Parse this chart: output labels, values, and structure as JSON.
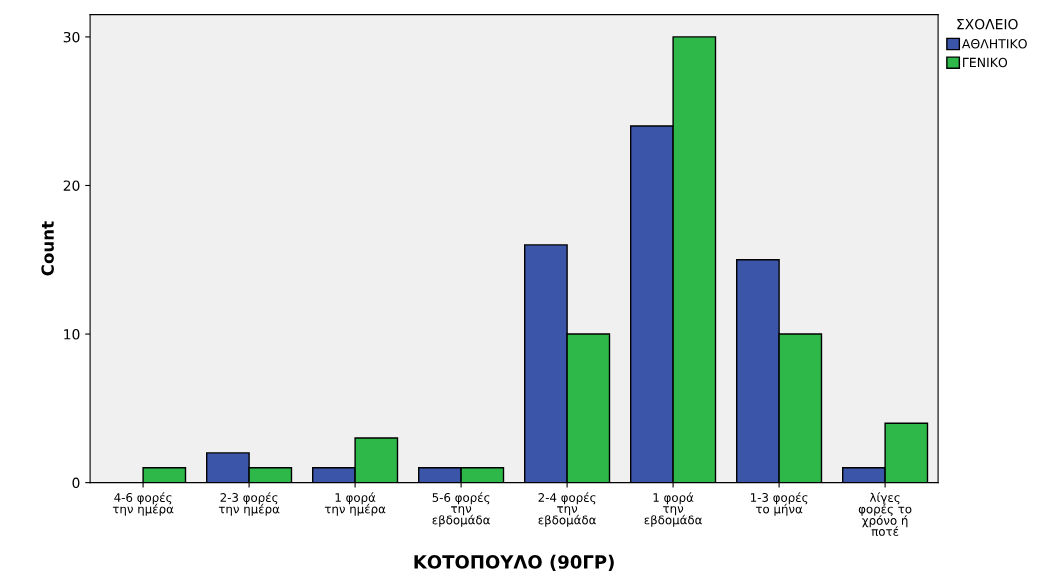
{
  "chart_data": {
    "type": "bar",
    "xlabel": "ΚΟΤΟΠΟΥΛΟ (90ΓΡ)",
    "ylabel": "Count",
    "legend_title": "ΣΧΟΛΕΙΟ",
    "legend": "top right",
    "grid": false,
    "categories": [
      "4-6 φορές\nτην ημέρα",
      "2-3 φορές\nτην ημέρα",
      "1 φορά\nτην ημέρα",
      "5-6 φορές\nτην\nεβδομάδα",
      "2-4 φορές\nτην\nεβδομάδα",
      "1 φορά\nτην\nεβδομάδα",
      "1-3 φορές\nτο μήνα",
      "λίγες\nφορές το\nχρόνο ή\nποτέ"
    ],
    "series": [
      {
        "name": "ΑΘΛΗΤΙΚΟ",
        "color": "#3b56a8",
        "values": [
          0,
          2,
          1,
          1,
          16,
          24,
          15,
          1
        ]
      },
      {
        "name": "ΓΕΝΙΚΟ",
        "color": "#2fb84a",
        "values": [
          1,
          1,
          3,
          1,
          10,
          30,
          10,
          4
        ]
      }
    ],
    "ylim": [
      0,
      31.5
    ],
    "yticks": [
      0,
      10,
      20,
      30
    ]
  }
}
